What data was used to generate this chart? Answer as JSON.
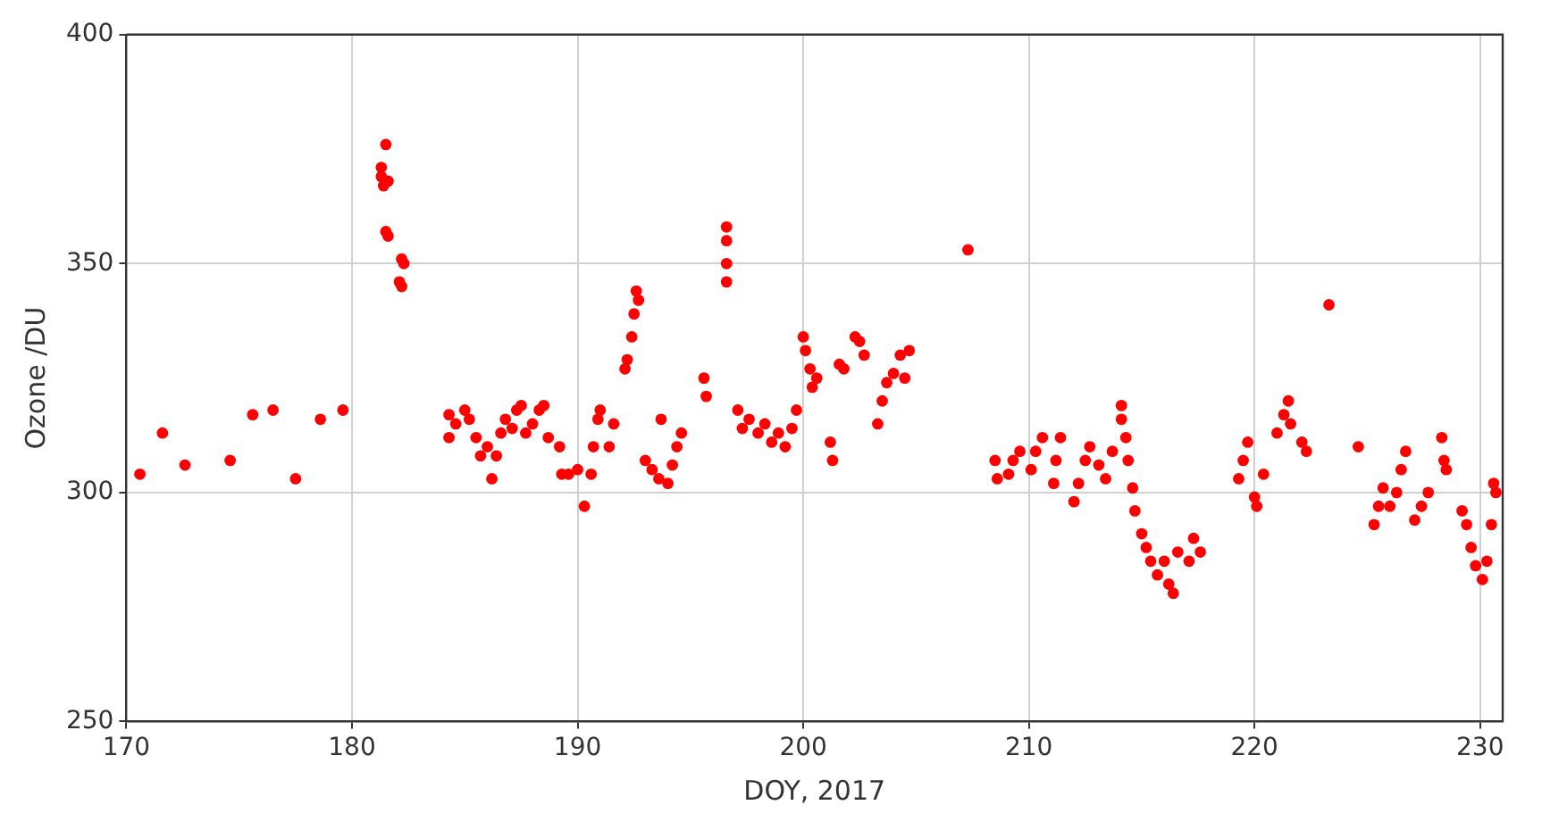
{
  "chart_data": {
    "type": "scatter",
    "xlabel": "DOY, 2017",
    "ylabel": "Ozone /DU",
    "xlim": [
      170,
      231
    ],
    "ylim": [
      250,
      400
    ],
    "xticks": [
      170,
      180,
      190,
      200,
      210,
      220,
      230
    ],
    "yticks": [
      250,
      300,
      350,
      400
    ],
    "grid": true,
    "legend": false,
    "marker": "circle",
    "series": [
      {
        "color": "#ff0000",
        "x": [
          170.6,
          171.6,
          172.6,
          174.6,
          175.6,
          176.5,
          177.5,
          178.6,
          179.6,
          181.5,
          181.3,
          181.3,
          181.4,
          181.6,
          181.5,
          181.6,
          182.2,
          182.3,
          182.1,
          182.2,
          184.3,
          184.3,
          184.6,
          185.0,
          185.2,
          185.5,
          185.7,
          186.0,
          186.2,
          186.4,
          186.6,
          186.8,
          187.1,
          187.3,
          187.5,
          187.7,
          188.0,
          188.3,
          188.5,
          188.7,
          189.2,
          189.3,
          189.6,
          190.0,
          190.3,
          190.6,
          190.7,
          190.9,
          191.0,
          191.4,
          191.6,
          192.1,
          192.2,
          192.4,
          192.5,
          192.6,
          192.7,
          193.0,
          193.3,
          193.6,
          193.7,
          194.0,
          194.2,
          194.4,
          194.6,
          195.6,
          195.7,
          196.6,
          196.6,
          196.6,
          196.6,
          197.1,
          197.3,
          197.6,
          198.0,
          198.3,
          198.6,
          198.9,
          199.2,
          199.5,
          199.7,
          200.0,
          200.1,
          200.3,
          200.4,
          200.6,
          201.2,
          201.3,
          201.6,
          201.8,
          202.3,
          202.5,
          202.7,
          203.3,
          203.5,
          203.7,
          204.0,
          204.3,
          204.5,
          204.7,
          207.3,
          208.5,
          208.6,
          209.1,
          209.3,
          209.6,
          210.1,
          210.3,
          210.6,
          211.1,
          211.2,
          211.4,
          212.0,
          212.2,
          212.5,
          212.7,
          213.1,
          213.4,
          213.7,
          214.1,
          214.1,
          214.3,
          214.4,
          214.6,
          214.7,
          215.0,
          215.2,
          215.4,
          215.7,
          216.0,
          216.2,
          216.4,
          216.6,
          217.1,
          217.3,
          217.6,
          219.3,
          219.5,
          219.7,
          220.0,
          220.1,
          220.4,
          221.0,
          221.3,
          221.5,
          221.6,
          222.1,
          222.3,
          223.3,
          224.6,
          225.3,
          225.5,
          225.7,
          226.0,
          226.3,
          226.5,
          226.7,
          227.1,
          227.4,
          227.7,
          228.3,
          228.4,
          228.5,
          229.2,
          229.4,
          229.6,
          229.8,
          230.1,
          230.3,
          230.5,
          230.7,
          230.6
        ],
        "values": [
          304,
          313,
          306,
          307,
          317,
          318,
          303,
          316,
          318,
          376,
          371,
          369,
          367,
          368,
          357,
          356,
          351,
          350,
          346,
          345,
          317,
          312,
          315,
          318,
          316,
          312,
          308,
          310,
          303,
          308,
          313,
          316,
          314,
          318,
          319,
          313,
          315,
          318,
          319,
          312,
          310,
          304,
          304,
          305,
          297,
          304,
          310,
          316,
          318,
          310,
          315,
          327,
          329,
          334,
          339,
          344,
          342,
          307,
          305,
          303,
          316,
          302,
          306,
          310,
          313,
          325,
          321,
          358,
          355,
          350,
          346,
          318,
          314,
          316,
          313,
          315,
          311,
          313,
          310,
          314,
          318,
          334,
          331,
          327,
          323,
          325,
          311,
          307,
          328,
          327,
          334,
          333,
          330,
          315,
          320,
          324,
          326,
          330,
          325,
          331,
          353,
          307,
          303,
          304,
          307,
          309,
          305,
          309,
          312,
          302,
          307,
          312,
          298,
          302,
          307,
          310,
          306,
          303,
          309,
          316,
          319,
          312,
          307,
          301,
          296,
          291,
          288,
          285,
          282,
          285,
          280,
          278,
          287,
          285,
          290,
          287,
          303,
          307,
          311,
          299,
          297,
          304,
          313,
          317,
          320,
          315,
          311,
          309,
          341,
          310,
          293,
          297,
          301,
          297,
          300,
          305,
          309,
          294,
          297,
          300,
          312,
          307,
          305,
          296,
          293,
          288,
          284,
          281,
          285,
          293,
          300,
          302
        ]
      }
    ]
  }
}
